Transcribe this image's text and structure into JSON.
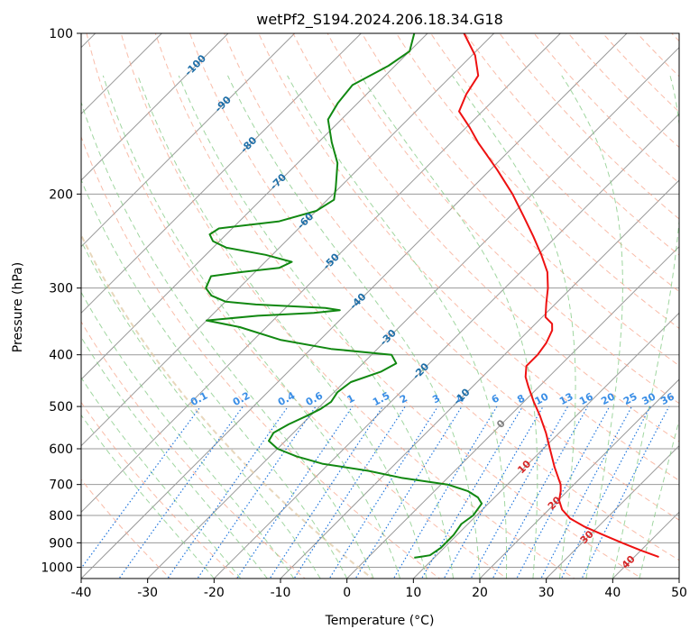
{
  "chart_data": {
    "type": "line",
    "title": "wetPf2_S194.2024.206.18.34.G18",
    "xlabel": "Temperature (°C)",
    "ylabel": "Pressure (hPa)",
    "xlim": [
      -40,
      50
    ],
    "ylim": [
      1050,
      100
    ],
    "yscale": "log",
    "skew": true,
    "grid": true,
    "xticks": [
      -40,
      -30,
      -20,
      -10,
      0,
      10,
      20,
      30,
      40,
      50
    ],
    "yticks": [
      100,
      200,
      300,
      400,
      500,
      600,
      700,
      800,
      900,
      1000
    ],
    "colors": {
      "temperature": "#ee1111",
      "dewpoint": "#118811",
      "dry_adiabat": "#f7a58c",
      "moist_adiabat": "#88cc88",
      "mixing_ratio": "#2277dd",
      "isotherm": "#999999",
      "isotherm_label_neg": "#1f6fa8",
      "isotherm_label_zero": "#808080",
      "isotherm_label_pos": "#d62728",
      "isotherm_highlight": "#e0c9a6"
    },
    "isotherm_labels": [
      -100,
      -90,
      -80,
      -70,
      -60,
      -50,
      -40,
      -30,
      -20,
      -10,
      0,
      10,
      20,
      30,
      40
    ],
    "mixing_ratio_labels": [
      "0.1",
      "0.2",
      "0.4",
      "0.6",
      "1",
      "1.5",
      "2",
      "3",
      "4",
      "6",
      "8",
      "10",
      "13",
      "16",
      "20",
      "25",
      "30",
      "36"
    ],
    "mixing_ratio_values": [
      0.1,
      0.2,
      0.4,
      0.6,
      1,
      1.5,
      2,
      3,
      4,
      6,
      8,
      10,
      13,
      16,
      20,
      25,
      30,
      36
    ],
    "series": [
      {
        "key": "temperature",
        "points": [
          [
            957,
            43.7
          ],
          [
            930,
            40.0
          ],
          [
            900,
            36.0
          ],
          [
            870,
            32.0
          ],
          [
            840,
            28.0
          ],
          [
            810,
            24.5
          ],
          [
            780,
            22.0
          ],
          [
            750,
            20.2
          ],
          [
            720,
            19.0
          ],
          [
            700,
            18.0
          ],
          [
            650,
            14.5
          ],
          [
            600,
            11.0
          ],
          [
            560,
            8.0
          ],
          [
            520,
            4.5
          ],
          [
            490,
            1.5
          ],
          [
            460,
            -1.5
          ],
          [
            440,
            -3.5
          ],
          [
            420,
            -5.0
          ],
          [
            400,
            -5.0
          ],
          [
            380,
            -5.5
          ],
          [
            360,
            -6.5
          ],
          [
            350,
            -7.5
          ],
          [
            340,
            -9.5
          ],
          [
            320,
            -11.5
          ],
          [
            300,
            -13.5
          ],
          [
            280,
            -16.0
          ],
          [
            260,
            -19.5
          ],
          [
            240,
            -23.5
          ],
          [
            220,
            -28.0
          ],
          [
            200,
            -33.0
          ],
          [
            180,
            -39.0
          ],
          [
            160,
            -46.0
          ],
          [
            150,
            -49.5
          ],
          [
            140,
            -53.5
          ],
          [
            130,
            -55.0
          ],
          [
            120,
            -56.0
          ],
          [
            110,
            -59.5
          ],
          [
            100,
            -64.5
          ]
        ]
      },
      {
        "key": "dewpoint",
        "points": [
          [
            960,
            7.0
          ],
          [
            955,
            8.0
          ],
          [
            950,
            9.0
          ],
          [
            920,
            9.5
          ],
          [
            870,
            9.5
          ],
          [
            830,
            9.0
          ],
          [
            800,
            9.5
          ],
          [
            760,
            9.0
          ],
          [
            740,
            7.5
          ],
          [
            720,
            5.0
          ],
          [
            700,
            1.0
          ],
          [
            680,
            -7.0
          ],
          [
            660,
            -13.0
          ],
          [
            640,
            -21.0
          ],
          [
            620,
            -26.0
          ],
          [
            600,
            -30.0
          ],
          [
            580,
            -32.5
          ],
          [
            560,
            -33.0
          ],
          [
            540,
            -32.0
          ],
          [
            520,
            -30.5
          ],
          [
            505,
            -29.5
          ],
          [
            490,
            -29.0
          ],
          [
            470,
            -29.5
          ],
          [
            450,
            -29.0
          ],
          [
            430,
            -26.0
          ],
          [
            415,
            -25.0
          ],
          [
            400,
            -27.0
          ],
          [
            390,
            -37.0
          ],
          [
            375,
            -46.0
          ],
          [
            355,
            -54.0
          ],
          [
            345,
            -60.0
          ],
          [
            338,
            -53.0
          ],
          [
            334,
            -45.0
          ],
          [
            330,
            -41.5
          ],
          [
            327,
            -44.0
          ],
          [
            322,
            -55.0
          ],
          [
            318,
            -60.0
          ],
          [
            310,
            -63.0
          ],
          [
            300,
            -65.0
          ],
          [
            285,
            -66.0
          ],
          [
            280,
            -62.0
          ],
          [
            275,
            -57.0
          ],
          [
            268,
            -56.0
          ],
          [
            260,
            -61.0
          ],
          [
            252,
            -68.0
          ],
          [
            245,
            -71.0
          ],
          [
            238,
            -72.5
          ],
          [
            232,
            -72.0
          ],
          [
            225,
            -64.0
          ],
          [
            215,
            -60.0
          ],
          [
            205,
            -59.0
          ],
          [
            195,
            -60.5
          ],
          [
            175,
            -64.0
          ],
          [
            160,
            -68.0
          ],
          [
            145,
            -72.0
          ],
          [
            135,
            -73.0
          ],
          [
            125,
            -73.5
          ],
          [
            115,
            -71.0
          ],
          [
            108,
            -70.0
          ],
          [
            100,
            -72.0
          ]
        ]
      }
    ]
  }
}
